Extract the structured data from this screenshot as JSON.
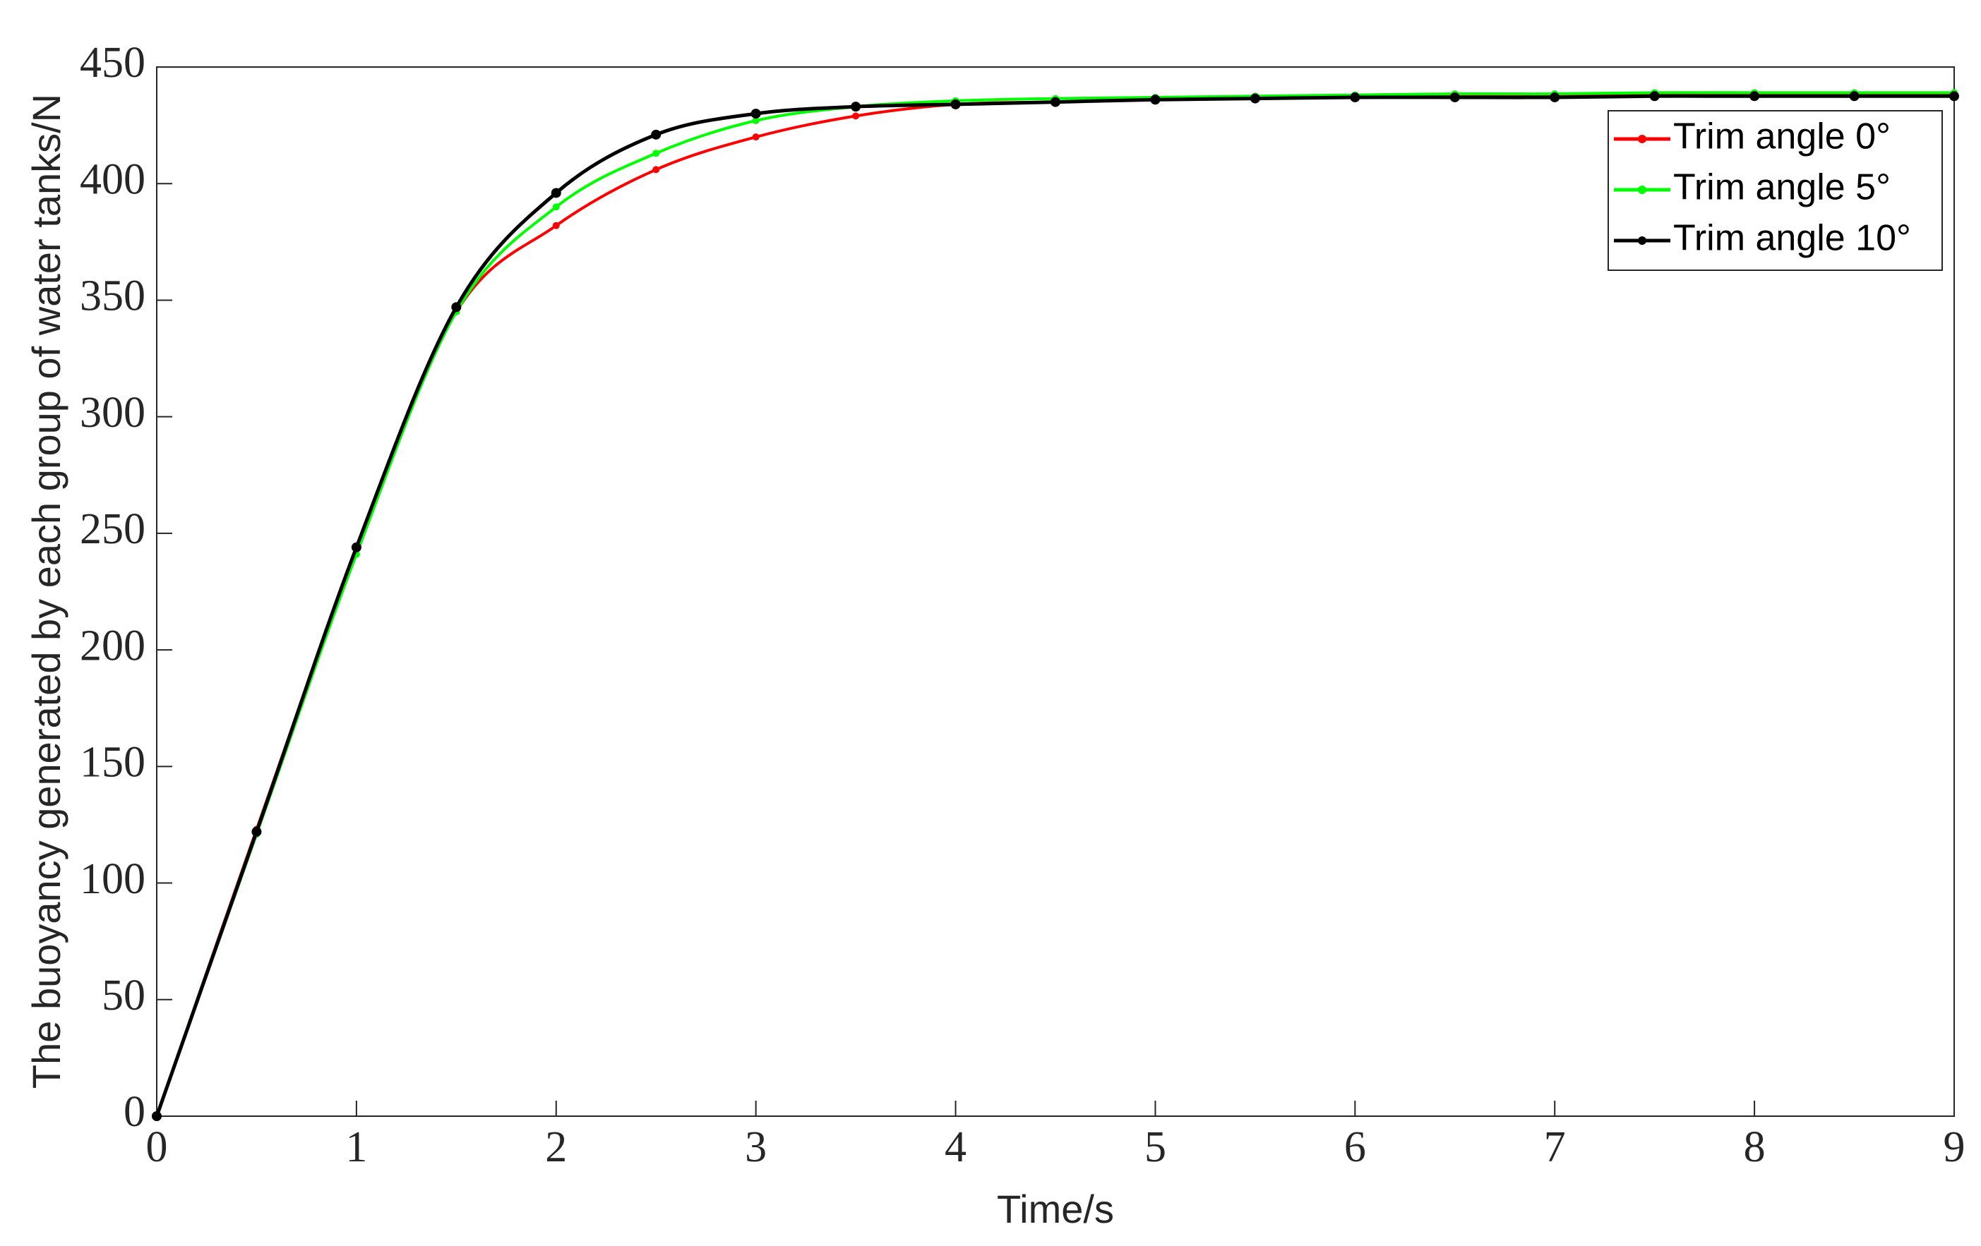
{
  "chart_data": {
    "type": "line",
    "x_label": "Time/s",
    "y_label": "The buoyancy generated by each group of water tanks/N",
    "x": [
      0,
      0.5,
      1,
      1.5,
      2,
      2.5,
      3,
      3.5,
      4,
      4.5,
      5,
      5.5,
      6,
      6.5,
      7,
      7.5,
      8,
      8.5,
      9
    ],
    "series": [
      {
        "name": "Trim angle 0°",
        "color": "#ff0000",
        "values": [
          0,
          123,
          243,
          345,
          382,
          406,
          420,
          429,
          434,
          435,
          436,
          437,
          437.5,
          437.5,
          438,
          438,
          438,
          438,
          438
        ]
      },
      {
        "name": "Trim angle 5°",
        "color": "#00ff00",
        "values": [
          0,
          121,
          241,
          345,
          390,
          413,
          427,
          433,
          435.5,
          436.5,
          437,
          437.5,
          438,
          438.5,
          438.5,
          439,
          439,
          439,
          439
        ]
      },
      {
        "name": "Trim angle 10°",
        "color": "#000000",
        "values": [
          0,
          122,
          244,
          347,
          396,
          421,
          430,
          433,
          434,
          435,
          436,
          436.5,
          437,
          437,
          437,
          437.5,
          437.5,
          437.5,
          437.5
        ]
      }
    ],
    "xlim": [
      0,
      9
    ],
    "xticks": [
      0,
      1,
      2,
      3,
      4,
      5,
      6,
      7,
      8,
      9
    ],
    "ylim": [
      0,
      450
    ],
    "yticks": [
      0,
      50,
      100,
      150,
      200,
      250,
      300,
      350,
      400,
      450
    ],
    "legend": "top-right"
  }
}
